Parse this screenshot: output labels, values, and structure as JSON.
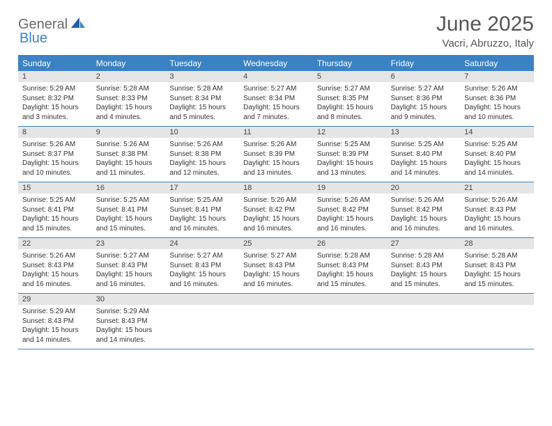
{
  "logo": {
    "text1": "General",
    "text2": "Blue"
  },
  "title": "June 2025",
  "location": "Vacri, Abruzzo, Italy",
  "colors": {
    "accent": "#3b82c4",
    "dayHeaderBg": "#e5e5e5",
    "text": "#333333"
  },
  "daysOfWeek": [
    "Sunday",
    "Monday",
    "Tuesday",
    "Wednesday",
    "Thursday",
    "Friday",
    "Saturday"
  ],
  "weeks": [
    [
      {
        "n": "1",
        "sr": "Sunrise: 5:29 AM",
        "ss": "Sunset: 8:32 PM",
        "dl1": "Daylight: 15 hours",
        "dl2": "and 3 minutes."
      },
      {
        "n": "2",
        "sr": "Sunrise: 5:28 AM",
        "ss": "Sunset: 8:33 PM",
        "dl1": "Daylight: 15 hours",
        "dl2": "and 4 minutes."
      },
      {
        "n": "3",
        "sr": "Sunrise: 5:28 AM",
        "ss": "Sunset: 8:34 PM",
        "dl1": "Daylight: 15 hours",
        "dl2": "and 5 minutes."
      },
      {
        "n": "4",
        "sr": "Sunrise: 5:27 AM",
        "ss": "Sunset: 8:34 PM",
        "dl1": "Daylight: 15 hours",
        "dl2": "and 7 minutes."
      },
      {
        "n": "5",
        "sr": "Sunrise: 5:27 AM",
        "ss": "Sunset: 8:35 PM",
        "dl1": "Daylight: 15 hours",
        "dl2": "and 8 minutes."
      },
      {
        "n": "6",
        "sr": "Sunrise: 5:27 AM",
        "ss": "Sunset: 8:36 PM",
        "dl1": "Daylight: 15 hours",
        "dl2": "and 9 minutes."
      },
      {
        "n": "7",
        "sr": "Sunrise: 5:26 AM",
        "ss": "Sunset: 8:36 PM",
        "dl1": "Daylight: 15 hours",
        "dl2": "and 10 minutes."
      }
    ],
    [
      {
        "n": "8",
        "sr": "Sunrise: 5:26 AM",
        "ss": "Sunset: 8:37 PM",
        "dl1": "Daylight: 15 hours",
        "dl2": "and 10 minutes."
      },
      {
        "n": "9",
        "sr": "Sunrise: 5:26 AM",
        "ss": "Sunset: 8:38 PM",
        "dl1": "Daylight: 15 hours",
        "dl2": "and 11 minutes."
      },
      {
        "n": "10",
        "sr": "Sunrise: 5:26 AM",
        "ss": "Sunset: 8:38 PM",
        "dl1": "Daylight: 15 hours",
        "dl2": "and 12 minutes."
      },
      {
        "n": "11",
        "sr": "Sunrise: 5:26 AM",
        "ss": "Sunset: 8:39 PM",
        "dl1": "Daylight: 15 hours",
        "dl2": "and 13 minutes."
      },
      {
        "n": "12",
        "sr": "Sunrise: 5:25 AM",
        "ss": "Sunset: 8:39 PM",
        "dl1": "Daylight: 15 hours",
        "dl2": "and 13 minutes."
      },
      {
        "n": "13",
        "sr": "Sunrise: 5:25 AM",
        "ss": "Sunset: 8:40 PM",
        "dl1": "Daylight: 15 hours",
        "dl2": "and 14 minutes."
      },
      {
        "n": "14",
        "sr": "Sunrise: 5:25 AM",
        "ss": "Sunset: 8:40 PM",
        "dl1": "Daylight: 15 hours",
        "dl2": "and 14 minutes."
      }
    ],
    [
      {
        "n": "15",
        "sr": "Sunrise: 5:25 AM",
        "ss": "Sunset: 8:41 PM",
        "dl1": "Daylight: 15 hours",
        "dl2": "and 15 minutes."
      },
      {
        "n": "16",
        "sr": "Sunrise: 5:25 AM",
        "ss": "Sunset: 8:41 PM",
        "dl1": "Daylight: 15 hours",
        "dl2": "and 15 minutes."
      },
      {
        "n": "17",
        "sr": "Sunrise: 5:25 AM",
        "ss": "Sunset: 8:41 PM",
        "dl1": "Daylight: 15 hours",
        "dl2": "and 16 minutes."
      },
      {
        "n": "18",
        "sr": "Sunrise: 5:26 AM",
        "ss": "Sunset: 8:42 PM",
        "dl1": "Daylight: 15 hours",
        "dl2": "and 16 minutes."
      },
      {
        "n": "19",
        "sr": "Sunrise: 5:26 AM",
        "ss": "Sunset: 8:42 PM",
        "dl1": "Daylight: 15 hours",
        "dl2": "and 16 minutes."
      },
      {
        "n": "20",
        "sr": "Sunrise: 5:26 AM",
        "ss": "Sunset: 8:42 PM",
        "dl1": "Daylight: 15 hours",
        "dl2": "and 16 minutes."
      },
      {
        "n": "21",
        "sr": "Sunrise: 5:26 AM",
        "ss": "Sunset: 8:43 PM",
        "dl1": "Daylight: 15 hours",
        "dl2": "and 16 minutes."
      }
    ],
    [
      {
        "n": "22",
        "sr": "Sunrise: 5:26 AM",
        "ss": "Sunset: 8:43 PM",
        "dl1": "Daylight: 15 hours",
        "dl2": "and 16 minutes."
      },
      {
        "n": "23",
        "sr": "Sunrise: 5:27 AM",
        "ss": "Sunset: 8:43 PM",
        "dl1": "Daylight: 15 hours",
        "dl2": "and 16 minutes."
      },
      {
        "n": "24",
        "sr": "Sunrise: 5:27 AM",
        "ss": "Sunset: 8:43 PM",
        "dl1": "Daylight: 15 hours",
        "dl2": "and 16 minutes."
      },
      {
        "n": "25",
        "sr": "Sunrise: 5:27 AM",
        "ss": "Sunset: 8:43 PM",
        "dl1": "Daylight: 15 hours",
        "dl2": "and 16 minutes."
      },
      {
        "n": "26",
        "sr": "Sunrise: 5:28 AM",
        "ss": "Sunset: 8:43 PM",
        "dl1": "Daylight: 15 hours",
        "dl2": "and 15 minutes."
      },
      {
        "n": "27",
        "sr": "Sunrise: 5:28 AM",
        "ss": "Sunset: 8:43 PM",
        "dl1": "Daylight: 15 hours",
        "dl2": "and 15 minutes."
      },
      {
        "n": "28",
        "sr": "Sunrise: 5:28 AM",
        "ss": "Sunset: 8:43 PM",
        "dl1": "Daylight: 15 hours",
        "dl2": "and 15 minutes."
      }
    ],
    [
      {
        "n": "29",
        "sr": "Sunrise: 5:29 AM",
        "ss": "Sunset: 8:43 PM",
        "dl1": "Daylight: 15 hours",
        "dl2": "and 14 minutes."
      },
      {
        "n": "30",
        "sr": "Sunrise: 5:29 AM",
        "ss": "Sunset: 8:43 PM",
        "dl1": "Daylight: 15 hours",
        "dl2": "and 14 minutes."
      },
      {
        "n": "",
        "sr": "",
        "ss": "",
        "dl1": "",
        "dl2": "",
        "empty": true
      },
      {
        "n": "",
        "sr": "",
        "ss": "",
        "dl1": "",
        "dl2": "",
        "empty": true
      },
      {
        "n": "",
        "sr": "",
        "ss": "",
        "dl1": "",
        "dl2": "",
        "empty": true
      },
      {
        "n": "",
        "sr": "",
        "ss": "",
        "dl1": "",
        "dl2": "",
        "empty": true
      },
      {
        "n": "",
        "sr": "",
        "ss": "",
        "dl1": "",
        "dl2": "",
        "empty": true
      }
    ]
  ]
}
